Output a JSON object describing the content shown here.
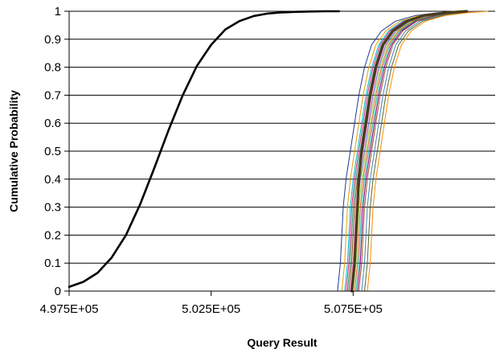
{
  "chart_data": {
    "type": "line",
    "title": "",
    "xlabel": "Query Result",
    "ylabel": "Cumulative Probability",
    "xlim": [
      497500,
      512500
    ],
    "ylim": [
      0,
      1
    ],
    "x_ticks": [
      497500,
      502500,
      507500
    ],
    "x_tick_labels": [
      "4.975E+05",
      "5.025E+05",
      "5.075E+05"
    ],
    "y_ticks": [
      0,
      0.1,
      0.2,
      0.3,
      0.4,
      0.5,
      0.6,
      0.7,
      0.8,
      0.9,
      1
    ],
    "y_tick_labels": [
      "0",
      "0.1",
      "0.2",
      "0.3",
      "0.4",
      "0.5",
      "0.6",
      "0.7",
      "0.8",
      "0.9",
      "1"
    ],
    "grid": "horizontal",
    "legend": "none",
    "colors": {
      "normal_curve": "#000000",
      "mean_curve": "#4a3b1c",
      "grid": "#000000",
      "runs": [
        "#1f3a93",
        "#e0a000",
        "#00bcd4",
        "#c02a8e",
        "#2e8b57",
        "#8b4513",
        "#ff66cc",
        "#6a5acd",
        "#9acd32",
        "#d2691e",
        "#20b2aa",
        "#800080",
        "#a0522d",
        "#4682b4",
        "#556b2f",
        "#ff8c00"
      ]
    },
    "series": [
      {
        "role": "normal-cdf",
        "x": [
          497500,
          498000,
          498500,
          499000,
          499500,
          500000,
          500500,
          501000,
          501500,
          502000,
          502500,
          503000,
          503500,
          504000,
          504500,
          505000,
          505500,
          506000,
          506500,
          507000
        ],
        "y": [
          0.015,
          0.033,
          0.065,
          0.12,
          0.2,
          0.31,
          0.44,
          0.575,
          0.7,
          0.805,
          0.88,
          0.935,
          0.965,
          0.983,
          0.992,
          0.996,
          0.998,
          0.999,
          1.0,
          1.0
        ]
      },
      {
        "role": "empirical-mean",
        "x": [
          507450,
          507500,
          507550,
          507600,
          507650,
          507700,
          507800,
          507950,
          508100,
          508300,
          508550,
          508900,
          509400,
          510000,
          510800,
          511500
        ],
        "y": [
          0,
          0.05,
          0.1,
          0.2,
          0.3,
          0.4,
          0.5,
          0.6,
          0.7,
          0.8,
          0.88,
          0.93,
          0.965,
          0.985,
          0.995,
          1.0
        ]
      }
    ],
    "runs": [
      {
        "x": [
          506950,
          507000,
          507050,
          507100,
          507150,
          507250,
          507400,
          507550,
          507700,
          507900,
          508150,
          508500,
          509000,
          509700,
          510500,
          511200
        ],
        "y": [
          0,
          0.05,
          0.1,
          0.2,
          0.3,
          0.4,
          0.5,
          0.6,
          0.7,
          0.8,
          0.88,
          0.93,
          0.965,
          0.985,
          0.995,
          1.0
        ]
      },
      {
        "x": [
          507100,
          507150,
          507200,
          507250,
          507300,
          507400,
          507550,
          507700,
          507850,
          508050,
          508300,
          508650,
          509150,
          509850,
          510650,
          511350
        ],
        "y": [
          0,
          0.05,
          0.1,
          0.2,
          0.3,
          0.4,
          0.5,
          0.6,
          0.7,
          0.8,
          0.88,
          0.93,
          0.965,
          0.985,
          0.995,
          1.0
        ]
      },
      {
        "x": [
          507200,
          507250,
          507300,
          507350,
          507400,
          507500,
          507650,
          507800,
          507950,
          508150,
          508400,
          508750,
          509250,
          509950,
          510750,
          511450
        ],
        "y": [
          0,
          0.05,
          0.1,
          0.2,
          0.3,
          0.4,
          0.5,
          0.6,
          0.7,
          0.8,
          0.88,
          0.93,
          0.965,
          0.985,
          0.995,
          1.0
        ]
      },
      {
        "x": [
          507250,
          507300,
          507350,
          507400,
          507450,
          507550,
          507700,
          507850,
          508000,
          508200,
          508450,
          508800,
          509300,
          510000,
          510800,
          511500
        ],
        "y": [
          0,
          0.05,
          0.1,
          0.2,
          0.3,
          0.4,
          0.5,
          0.6,
          0.7,
          0.8,
          0.88,
          0.93,
          0.965,
          0.985,
          0.995,
          1.0
        ]
      },
      {
        "x": [
          507300,
          507350,
          507400,
          507450,
          507500,
          507600,
          507750,
          507900,
          508050,
          508250,
          508500,
          508850,
          509350,
          510050,
          510850,
          511550
        ],
        "y": [
          0,
          0.05,
          0.1,
          0.2,
          0.3,
          0.4,
          0.5,
          0.6,
          0.7,
          0.8,
          0.88,
          0.93,
          0.965,
          0.985,
          0.995,
          1.0
        ]
      },
      {
        "x": [
          507350,
          507400,
          507450,
          507500,
          507550,
          507650,
          507800,
          507950,
          508100,
          508300,
          508550,
          508900,
          509400,
          510100,
          510900,
          511600
        ],
        "y": [
          0,
          0.05,
          0.1,
          0.2,
          0.3,
          0.4,
          0.5,
          0.6,
          0.7,
          0.8,
          0.88,
          0.93,
          0.965,
          0.985,
          0.995,
          1.0
        ]
      },
      {
        "x": [
          507400,
          507450,
          507500,
          507550,
          507600,
          507700,
          507850,
          508000,
          508150,
          508350,
          508600,
          508950,
          509450,
          510150,
          510950,
          511650
        ],
        "y": [
          0,
          0.05,
          0.1,
          0.2,
          0.3,
          0.4,
          0.5,
          0.6,
          0.7,
          0.8,
          0.88,
          0.93,
          0.965,
          0.985,
          0.995,
          1.0
        ]
      },
      {
        "x": [
          507450,
          507500,
          507550,
          507600,
          507650,
          507750,
          507900,
          508050,
          508200,
          508400,
          508650,
          509000,
          509500,
          510200,
          511000,
          511700
        ],
        "y": [
          0,
          0.05,
          0.1,
          0.2,
          0.3,
          0.4,
          0.5,
          0.6,
          0.7,
          0.8,
          0.88,
          0.93,
          0.965,
          0.985,
          0.995,
          1.0
        ]
      },
      {
        "x": [
          507500,
          507550,
          507600,
          507650,
          507700,
          507800,
          507950,
          508100,
          508250,
          508450,
          508700,
          509050,
          509550,
          510250,
          511050,
          511750
        ],
        "y": [
          0,
          0.05,
          0.1,
          0.2,
          0.3,
          0.4,
          0.5,
          0.6,
          0.7,
          0.8,
          0.88,
          0.93,
          0.965,
          0.985,
          0.995,
          1.0
        ]
      },
      {
        "x": [
          507550,
          507600,
          507650,
          507700,
          507750,
          507850,
          508000,
          508150,
          508300,
          508500,
          508750,
          509100,
          509600,
          510300,
          511100,
          511800
        ],
        "y": [
          0,
          0.05,
          0.1,
          0.2,
          0.3,
          0.4,
          0.5,
          0.6,
          0.7,
          0.8,
          0.88,
          0.93,
          0.965,
          0.985,
          0.995,
          1.0
        ]
      },
      {
        "x": [
          507600,
          507650,
          507700,
          507750,
          507800,
          507900,
          508050,
          508200,
          508350,
          508550,
          508800,
          509150,
          509650,
          510350,
          511150,
          511850
        ],
        "y": [
          0,
          0.05,
          0.1,
          0.2,
          0.3,
          0.4,
          0.5,
          0.6,
          0.7,
          0.8,
          0.88,
          0.93,
          0.965,
          0.985,
          0.995,
          1.0
        ]
      },
      {
        "x": [
          507650,
          507700,
          507750,
          507800,
          507850,
          507950,
          508100,
          508250,
          508400,
          508600,
          508850,
          509200,
          509700,
          510400,
          511200,
          511900
        ],
        "y": [
          0,
          0.05,
          0.1,
          0.2,
          0.3,
          0.4,
          0.5,
          0.6,
          0.7,
          0.8,
          0.88,
          0.93,
          0.965,
          0.985,
          0.995,
          1.0
        ]
      },
      {
        "x": [
          507700,
          507750,
          507800,
          507850,
          507900,
          508000,
          508150,
          508300,
          508450,
          508650,
          508900,
          509250,
          509750,
          510450,
          511250,
          511950
        ],
        "y": [
          0,
          0.05,
          0.1,
          0.2,
          0.3,
          0.4,
          0.5,
          0.6,
          0.7,
          0.8,
          0.88,
          0.93,
          0.965,
          0.985,
          0.995,
          1.0
        ]
      },
      {
        "x": [
          507800,
          507850,
          507900,
          507950,
          508000,
          508100,
          508250,
          508400,
          508550,
          508750,
          509000,
          509350,
          509850,
          510550,
          511350,
          512050
        ],
        "y": [
          0,
          0.05,
          0.1,
          0.2,
          0.3,
          0.4,
          0.5,
          0.6,
          0.7,
          0.8,
          0.88,
          0.93,
          0.965,
          0.985,
          0.995,
          1.0
        ]
      },
      {
        "x": [
          507900,
          507950,
          508000,
          508050,
          508100,
          508200,
          508350,
          508500,
          508650,
          508850,
          509100,
          509450,
          509950,
          510650,
          511450,
          512150
        ],
        "y": [
          0,
          0.05,
          0.1,
          0.2,
          0.3,
          0.4,
          0.5,
          0.6,
          0.7,
          0.8,
          0.88,
          0.93,
          0.965,
          0.985,
          0.995,
          1.0
        ]
      },
      {
        "x": [
          508000,
          508050,
          508100,
          508150,
          508200,
          508300,
          508450,
          508600,
          508750,
          508950,
          509200,
          509550,
          510050,
          510750,
          511550,
          512250
        ],
        "y": [
          0,
          0.05,
          0.1,
          0.2,
          0.3,
          0.4,
          0.5,
          0.6,
          0.7,
          0.8,
          0.88,
          0.93,
          0.965,
          0.985,
          0.995,
          1.0
        ]
      }
    ]
  }
}
